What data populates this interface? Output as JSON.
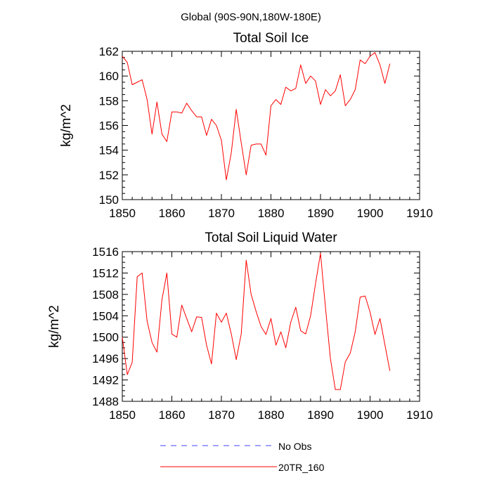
{
  "figure": {
    "main_title": "Global (90S-90N,180W-180E)"
  },
  "chart_data": [
    {
      "type": "line",
      "title": "Total Soil Ice",
      "xlabel": "",
      "ylabel": "kg/m^2",
      "xlim": [
        1850,
        1910
      ],
      "ylim": [
        150,
        162
      ],
      "xticks": [
        1850,
        1860,
        1870,
        1880,
        1890,
        1900,
        1910
      ],
      "yticks": [
        150,
        152,
        154,
        156,
        158,
        160,
        162
      ],
      "grid": false,
      "series": [
        {
          "name": "20TR_160",
          "color": "#ff0000",
          "x": [
            1850,
            1851,
            1852,
            1853,
            1854,
            1855,
            1856,
            1857,
            1858,
            1859,
            1860,
            1861,
            1862,
            1863,
            1864,
            1865,
            1866,
            1867,
            1868,
            1869,
            1870,
            1871,
            1872,
            1873,
            1874,
            1875,
            1876,
            1877,
            1878,
            1879,
            1880,
            1881,
            1882,
            1883,
            1884,
            1885,
            1886,
            1887,
            1888,
            1889,
            1890,
            1891,
            1892,
            1893,
            1894,
            1895,
            1896,
            1897,
            1898,
            1899,
            1900,
            1901,
            1902,
            1903,
            1904
          ],
          "values": [
            161.6,
            161.1,
            159.3,
            159.5,
            159.7,
            158.1,
            155.3,
            157.9,
            155.3,
            154.7,
            157.1,
            157.1,
            157.0,
            157.8,
            157.2,
            156.7,
            156.7,
            155.2,
            156.5,
            156.0,
            154.8,
            151.6,
            153.8,
            157.3,
            154.6,
            152.0,
            154.4,
            154.5,
            154.5,
            153.6,
            157.6,
            158.1,
            157.7,
            159.1,
            158.8,
            159.0,
            160.9,
            159.4,
            160.0,
            159.6,
            157.7,
            158.9,
            158.4,
            158.8,
            160.1,
            157.6,
            158.1,
            158.9,
            161.3,
            161.0,
            161.6,
            161.9,
            160.9,
            159.4,
            161.0
          ]
        }
      ]
    },
    {
      "type": "line",
      "title": "Total Soil Liquid Water",
      "xlabel": "",
      "ylabel": "kg/m^2",
      "xlim": [
        1850,
        1910
      ],
      "ylim": [
        1488,
        1516
      ],
      "xticks": [
        1850,
        1860,
        1870,
        1880,
        1890,
        1900,
        1910
      ],
      "yticks": [
        1488,
        1492,
        1496,
        1500,
        1504,
        1508,
        1512,
        1516
      ],
      "grid": false,
      "series": [
        {
          "name": "20TR_160",
          "color": "#ff0000",
          "x": [
            1850,
            1851,
            1852,
            1853,
            1854,
            1855,
            1856,
            1857,
            1858,
            1859,
            1860,
            1861,
            1862,
            1863,
            1864,
            1865,
            1866,
            1867,
            1868,
            1869,
            1870,
            1871,
            1872,
            1873,
            1874,
            1875,
            1876,
            1877,
            1878,
            1879,
            1880,
            1881,
            1882,
            1883,
            1884,
            1885,
            1886,
            1887,
            1888,
            1889,
            1890,
            1891,
            1892,
            1893,
            1894,
            1895,
            1896,
            1897,
            1898,
            1899,
            1900,
            1901,
            1902,
            1903,
            1904
          ],
          "values": [
            1500.0,
            1493.0,
            1495.3,
            1511.3,
            1512.0,
            1503.0,
            1499.0,
            1497.2,
            1507.0,
            1512.0,
            1500.6,
            1500.0,
            1506.0,
            1503.5,
            1501.0,
            1503.8,
            1503.7,
            1498.5,
            1495.0,
            1504.5,
            1502.8,
            1504.5,
            1500.6,
            1495.8,
            1500.6,
            1514.4,
            1508.0,
            1504.8,
            1502.0,
            1500.5,
            1503.5,
            1498.5,
            1501.0,
            1498.0,
            1502.8,
            1505.6,
            1501.2,
            1500.6,
            1504.0,
            1510.0,
            1515.7,
            1505.5,
            1496.0,
            1490.2,
            1490.2,
            1495.4,
            1497.0,
            1501.0,
            1507.5,
            1507.7,
            1504.7,
            1500.5,
            1503.5,
            1498.6,
            1493.7
          ]
        }
      ]
    }
  ],
  "legend": {
    "placement": "bottom-center",
    "entries": [
      {
        "label": "No Obs",
        "color": "#4444ff",
        "style": "dashed"
      },
      {
        "label": "20TR_160",
        "color": "#ff0000",
        "style": "solid"
      }
    ]
  }
}
